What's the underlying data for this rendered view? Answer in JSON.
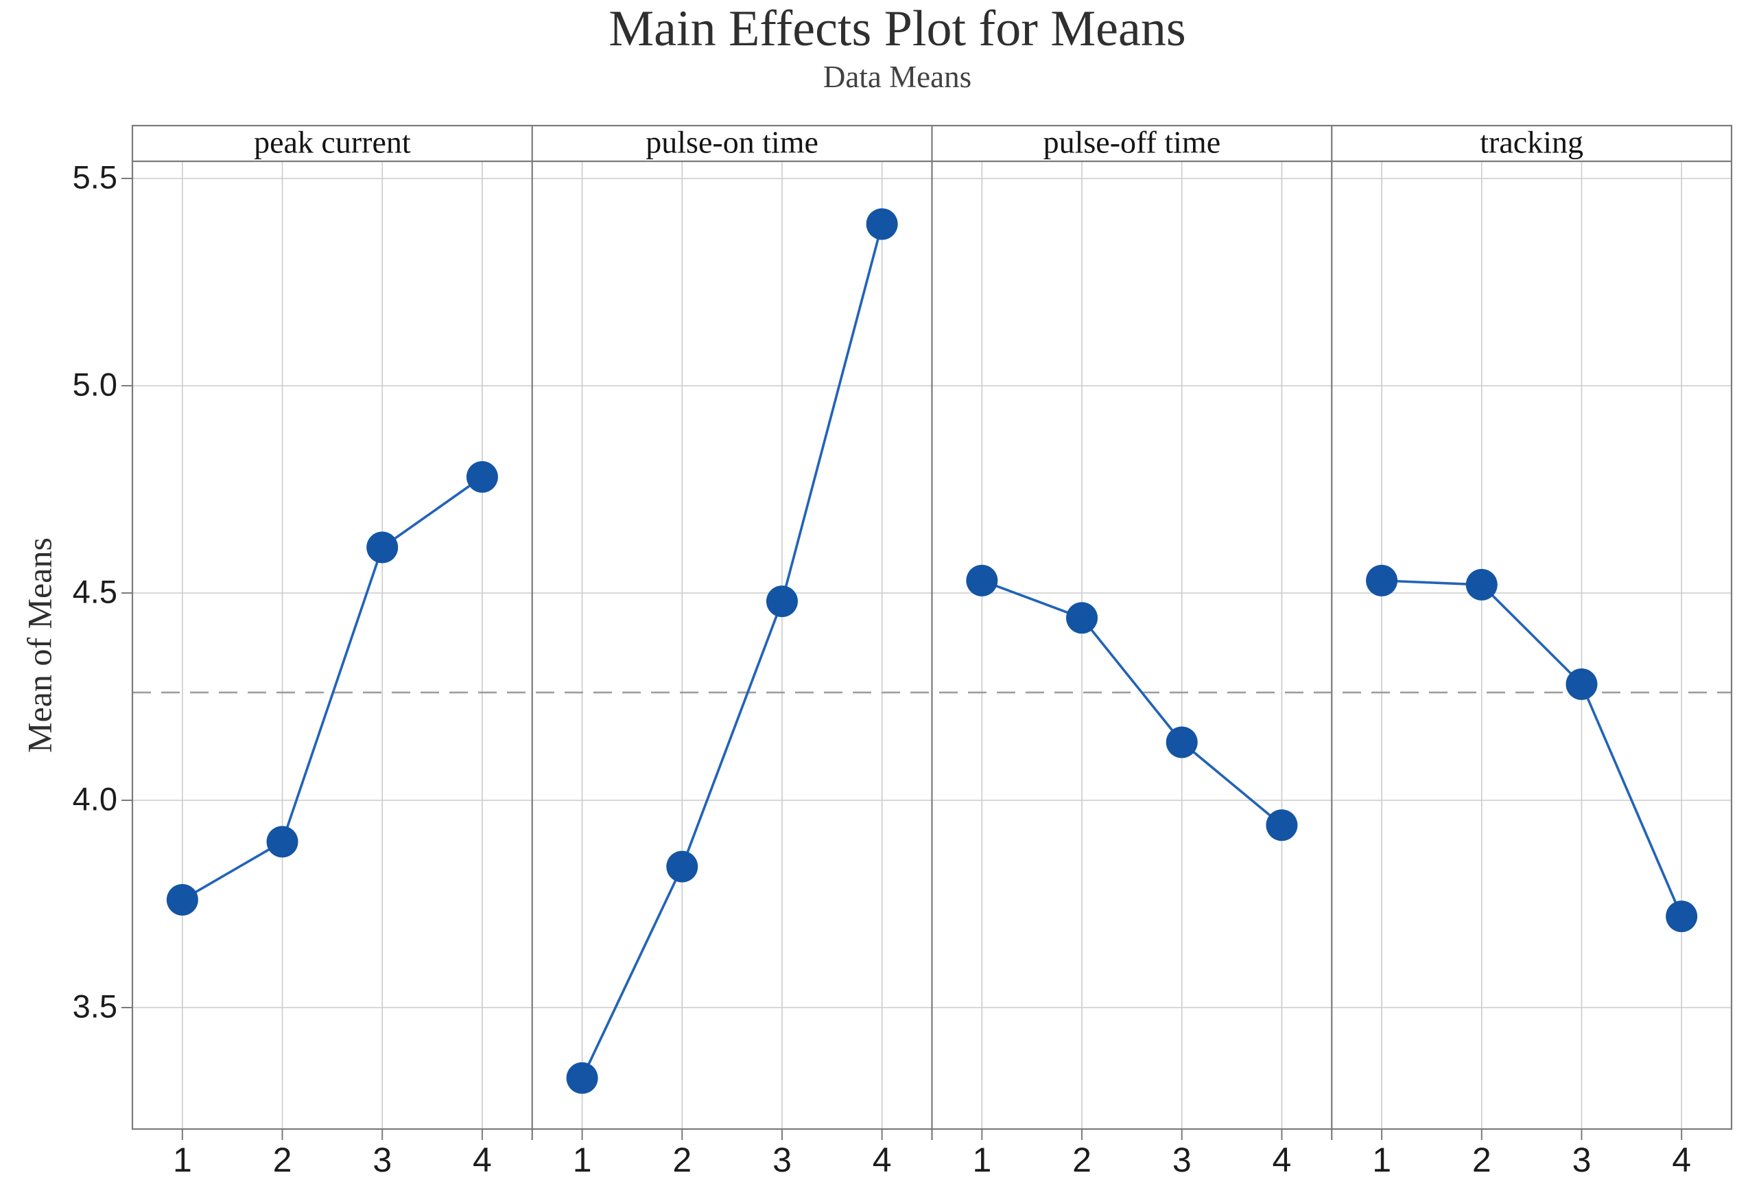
{
  "page": {
    "background": "#ffffff"
  },
  "chart_data": {
    "type": "line",
    "title": "Main Effects Plot for Means",
    "subtitle": "Data Means",
    "ylabel": "Mean of Means",
    "xlabel": "",
    "legend": false,
    "grid": true,
    "ylim": [
      3.21,
      5.63
    ],
    "y_ticks": [
      {
        "label": "5.5",
        "value": 5.5
      },
      {
        "label": "5.0",
        "value": 5.0
      },
      {
        "label": "4.5",
        "value": 4.5
      },
      {
        "label": "4.0",
        "value": 4.0
      },
      {
        "label": "3.5",
        "value": 3.5
      }
    ],
    "x_tick_labels": [
      "1",
      "2",
      "3",
      "4"
    ],
    "reference_line": {
      "value": 4.26,
      "style": "dashed",
      "meaning": "grand-mean"
    },
    "panels": [
      {
        "label": "peak current",
        "x": [
          1,
          2,
          3,
          4
        ],
        "values": [
          3.76,
          3.9,
          4.61,
          4.78
        ]
      },
      {
        "label": "pulse-on time",
        "x": [
          1,
          2,
          3,
          4
        ],
        "values": [
          3.33,
          3.84,
          4.48,
          5.39
        ]
      },
      {
        "label": "pulse-off time",
        "x": [
          1,
          2,
          3,
          4
        ],
        "values": [
          4.53,
          4.44,
          4.14,
          3.94
        ]
      },
      {
        "label": "tracking",
        "x": [
          1,
          2,
          3,
          4
        ],
        "values": [
          4.53,
          4.52,
          4.28,
          3.72
        ]
      }
    ],
    "marker": {
      "shape": "circle",
      "radius_px": 23
    },
    "colors": {
      "series_marker": "#1354a4",
      "series_line": "#2263b8",
      "grid_line": "#cbcbcb",
      "frame": "#7b7b7b",
      "reference_line": "#9e9e9e",
      "title_text": "#2f2f2f",
      "subtitle_text": "#424242",
      "label_text": "#1c1c1c",
      "background": "#ffffff"
    }
  }
}
